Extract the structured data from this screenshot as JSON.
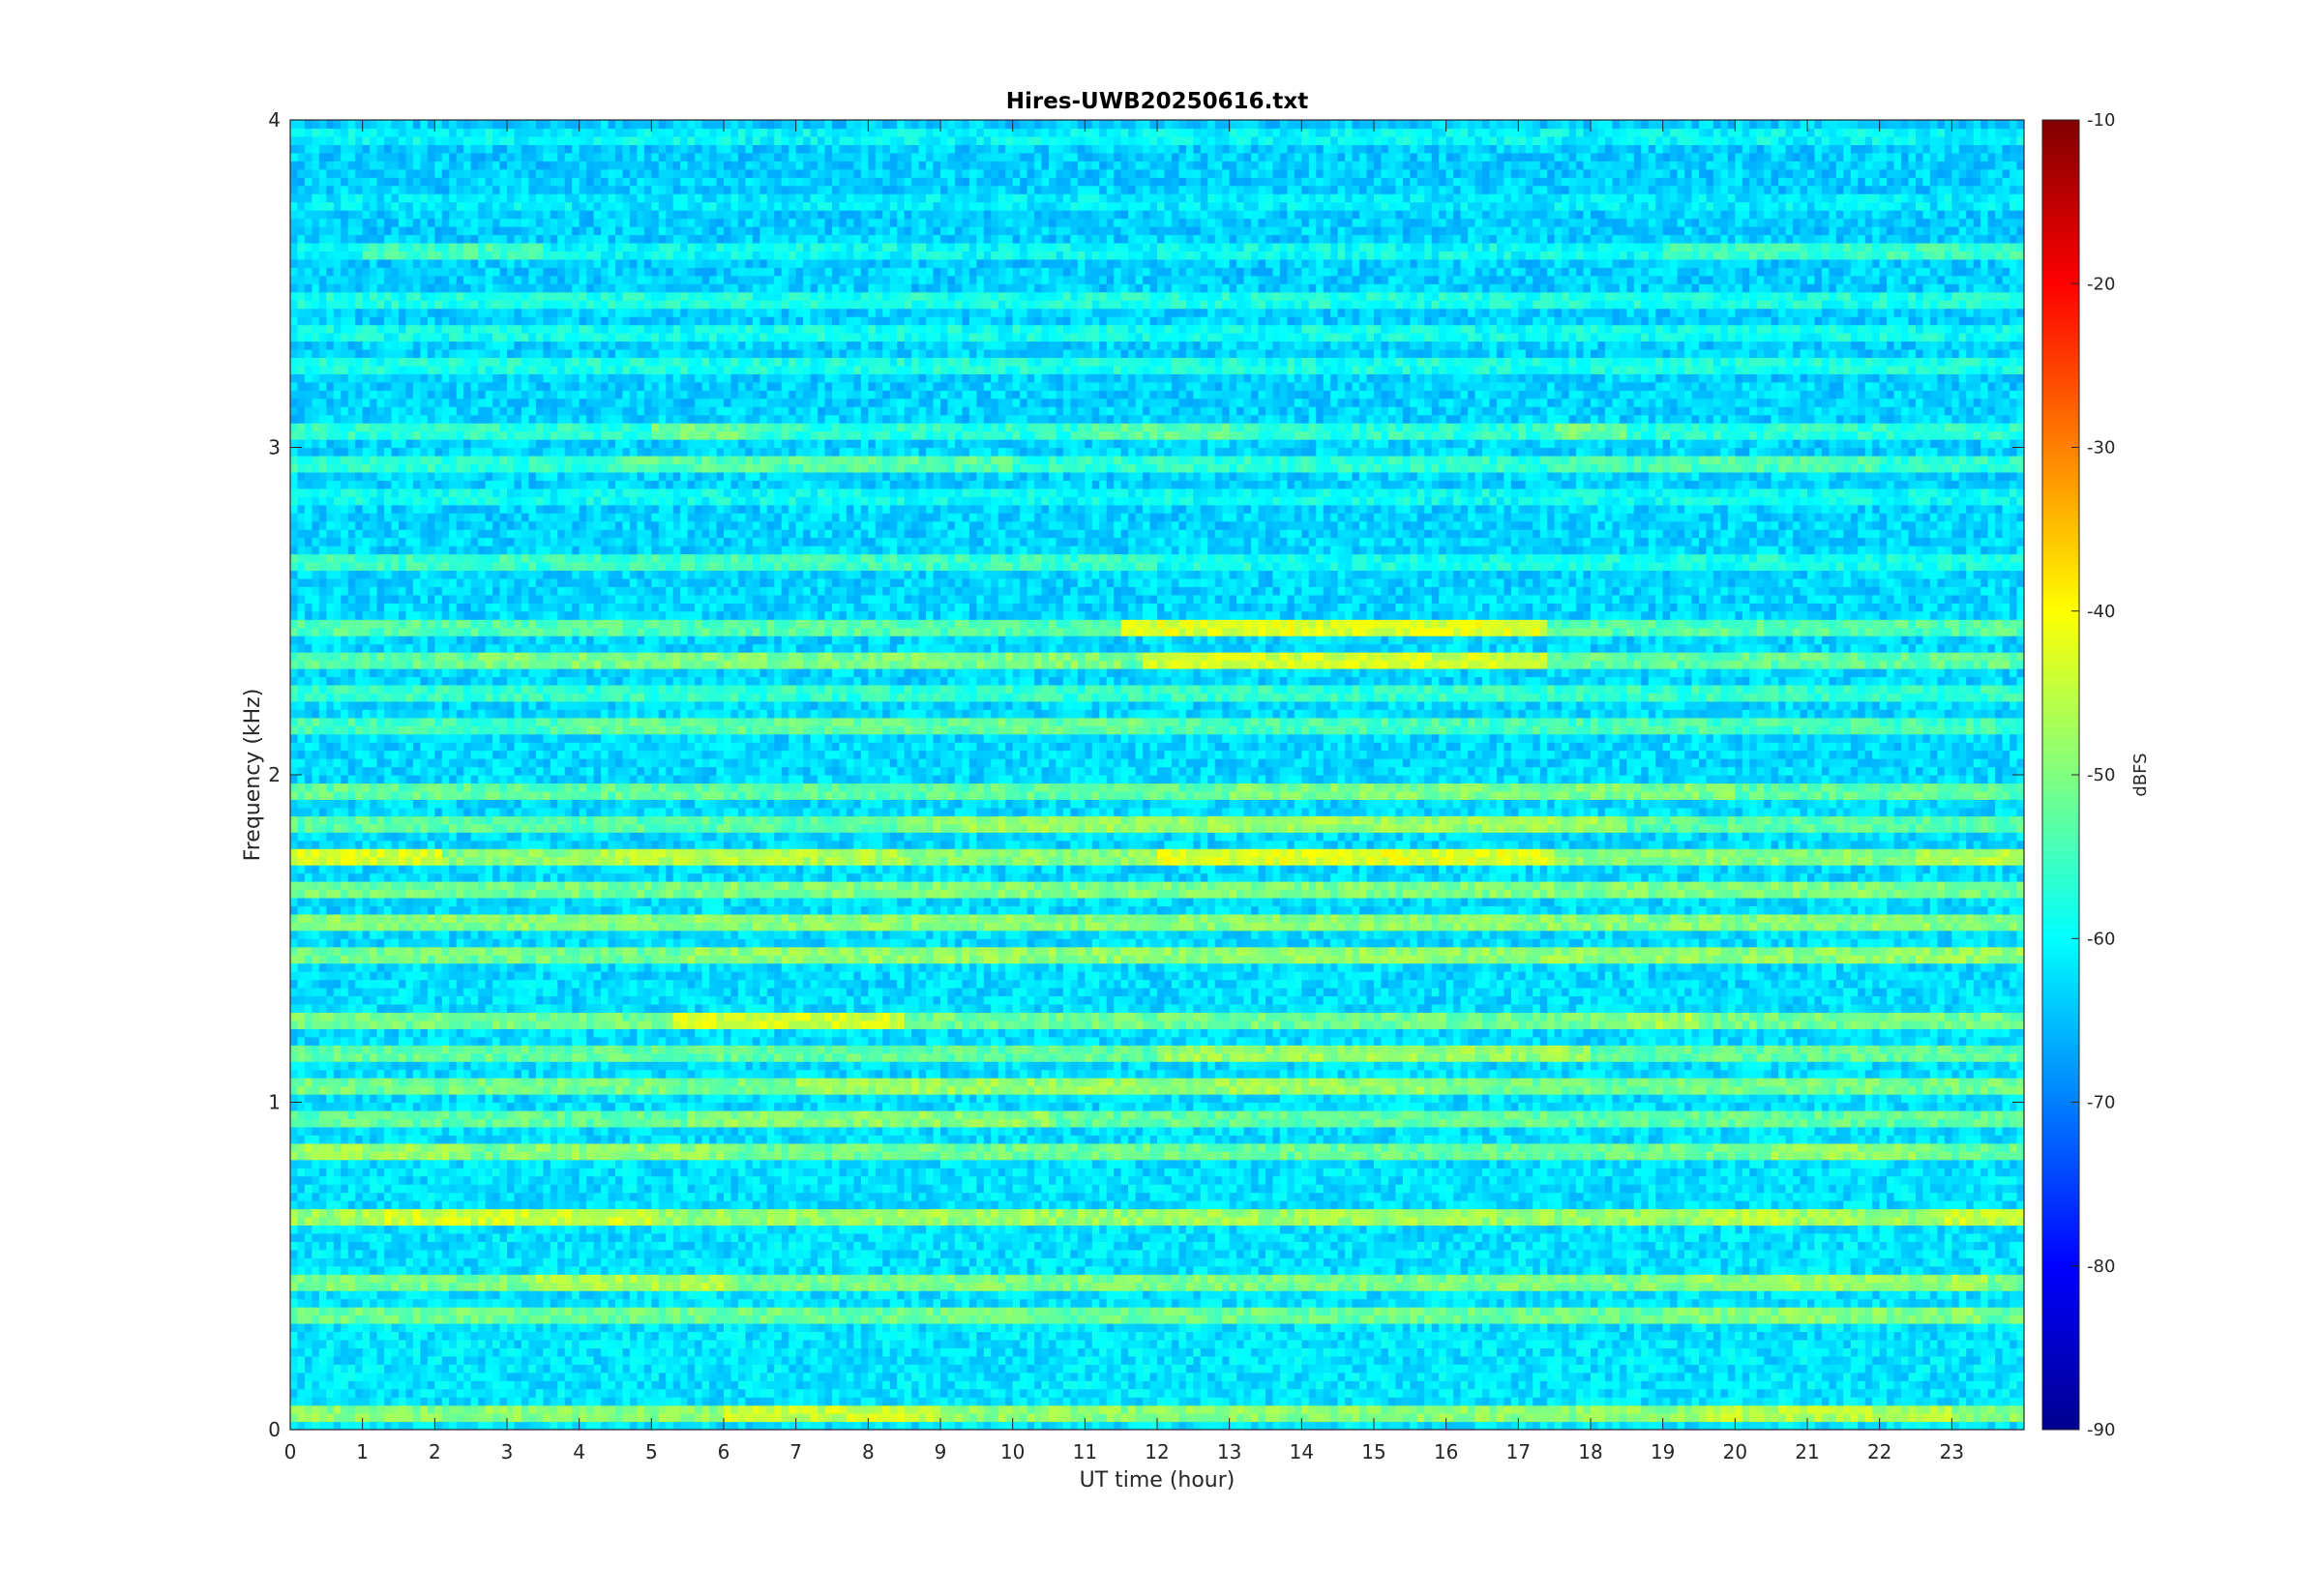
{
  "chart_data": {
    "type": "heatmap",
    "title": "Hires-UWB20250616.txt",
    "xlabel": "UT time (hour)",
    "ylabel": "Frequency (kHz)",
    "xlim": [
      0,
      24
    ],
    "ylim": [
      0,
      4
    ],
    "x_ticks": [
      "0",
      "1",
      "2",
      "3",
      "4",
      "5",
      "6",
      "7",
      "8",
      "9",
      "10",
      "11",
      "12",
      "13",
      "14",
      "15",
      "16",
      "17",
      "18",
      "19",
      "20",
      "21",
      "22",
      "23"
    ],
    "y_ticks": [
      "0",
      "1",
      "2",
      "3",
      "4"
    ],
    "colorbar": {
      "label": "dBFS",
      "range": [
        -90,
        -10
      ],
      "ticks": [
        "-10",
        "-20",
        "-30",
        "-40",
        "-50",
        "-60",
        "-70",
        "-80",
        "-90"
      ],
      "colormap": "jet"
    },
    "colormap_colors": [
      "#00008f",
      "#0000ff",
      "#00ffff",
      "#ffff00",
      "#ff0000",
      "#800000"
    ],
    "background_level_dbfs": -62,
    "bands": [
      {
        "f": 0.05,
        "level": -42,
        "segments": [
          [
            6.0,
            9.0,
            -35
          ],
          [
            19.5,
            23.0,
            -37
          ]
        ]
      },
      {
        "f": 0.35,
        "level": -46,
        "segments": [
          [
            19.0,
            23.5,
            -43
          ]
        ]
      },
      {
        "f": 0.45,
        "level": -44,
        "segments": [
          [
            3.3,
            6.0,
            -38
          ],
          [
            19.5,
            23.5,
            -40
          ]
        ]
      },
      {
        "f": 0.65,
        "level": -40,
        "segments": [
          [
            1.0,
            5.0,
            -34
          ],
          [
            19.8,
            20.8,
            -35
          ],
          [
            22.8,
            24.0,
            -35
          ]
        ]
      },
      {
        "f": 0.85,
        "level": -46,
        "segments": [
          [
            0.0,
            2.5,
            -40
          ],
          [
            3.0,
            6.0,
            -41
          ],
          [
            20.5,
            22.5,
            -41
          ]
        ]
      },
      {
        "f": 0.95,
        "level": -47,
        "segments": [
          [
            5.5,
            10.5,
            -42
          ]
        ]
      },
      {
        "f": 1.05,
        "level": -45,
        "segments": [
          [
            7.0,
            16.0,
            -40
          ]
        ]
      },
      {
        "f": 1.15,
        "level": -47,
        "segments": [
          [
            12.0,
            18.0,
            -40
          ]
        ]
      },
      {
        "f": 1.25,
        "level": -45,
        "segments": [
          [
            5.3,
            8.5,
            -33
          ],
          [
            18.5,
            19.5,
            -38
          ]
        ]
      },
      {
        "f": 1.45,
        "level": -45,
        "segments": [
          [
            5.5,
            24.0,
            -41
          ]
        ]
      },
      {
        "f": 1.55,
        "level": -47,
        "segments": [
          [
            0.0,
            24.0,
            -42
          ]
        ]
      },
      {
        "f": 1.65,
        "level": -45,
        "segments": [
          [
            5.5,
            23.0,
            -43
          ]
        ]
      },
      {
        "f": 1.75,
        "level": -42,
        "segments": [
          [
            0.0,
            2.1,
            -32
          ],
          [
            4.0,
            8.5,
            -37
          ],
          [
            12.0,
            17.5,
            -31
          ],
          [
            22.5,
            24.0,
            -37
          ]
        ]
      },
      {
        "f": 1.85,
        "level": -48,
        "segments": [
          [
            8.5,
            18.5,
            -40
          ]
        ]
      },
      {
        "f": 1.95,
        "level": -47,
        "segments": [
          [
            13.0,
            20.0,
            -43
          ]
        ]
      },
      {
        "f": 2.15,
        "level": -50,
        "segments": [
          [
            4.0,
            12.0,
            -46
          ]
        ]
      },
      {
        "f": 2.25,
        "level": -52,
        "segments": []
      },
      {
        "f": 2.35,
        "level": -47,
        "segments": [
          [
            2.5,
            11.5,
            -43
          ],
          [
            11.8,
            17.4,
            -33
          ]
        ]
      },
      {
        "f": 2.45,
        "level": -48,
        "segments": [
          [
            11.5,
            17.4,
            -31
          ]
        ]
      },
      {
        "f": 2.65,
        "level": -56,
        "segments": [
          [
            0.0,
            12.0,
            -51
          ]
        ]
      },
      {
        "f": 2.85,
        "level": -57,
        "segments": []
      },
      {
        "f": 2.95,
        "level": -53,
        "segments": [
          [
            4.5,
            10.0,
            -48
          ],
          [
            17.5,
            22.0,
            -49
          ]
        ]
      },
      {
        "f": 3.05,
        "level": -53,
        "segments": [
          [
            5.0,
            6.5,
            -45
          ],
          [
            11.0,
            13.0,
            -47
          ],
          [
            17.5,
            18.5,
            -44
          ]
        ]
      },
      {
        "f": 3.25,
        "level": -55,
        "segments": []
      },
      {
        "f": 3.35,
        "level": -56,
        "segments": []
      },
      {
        "f": 3.45,
        "level": -55,
        "segments": []
      },
      {
        "f": 3.6,
        "level": -57,
        "segments": [
          [
            1.0,
            3.5,
            -50
          ],
          [
            19.0,
            24.0,
            -51
          ]
        ]
      },
      {
        "f": 3.75,
        "level": -60,
        "segments": []
      },
      {
        "f": 3.95,
        "level": -58,
        "segments": []
      }
    ],
    "grid": false
  }
}
